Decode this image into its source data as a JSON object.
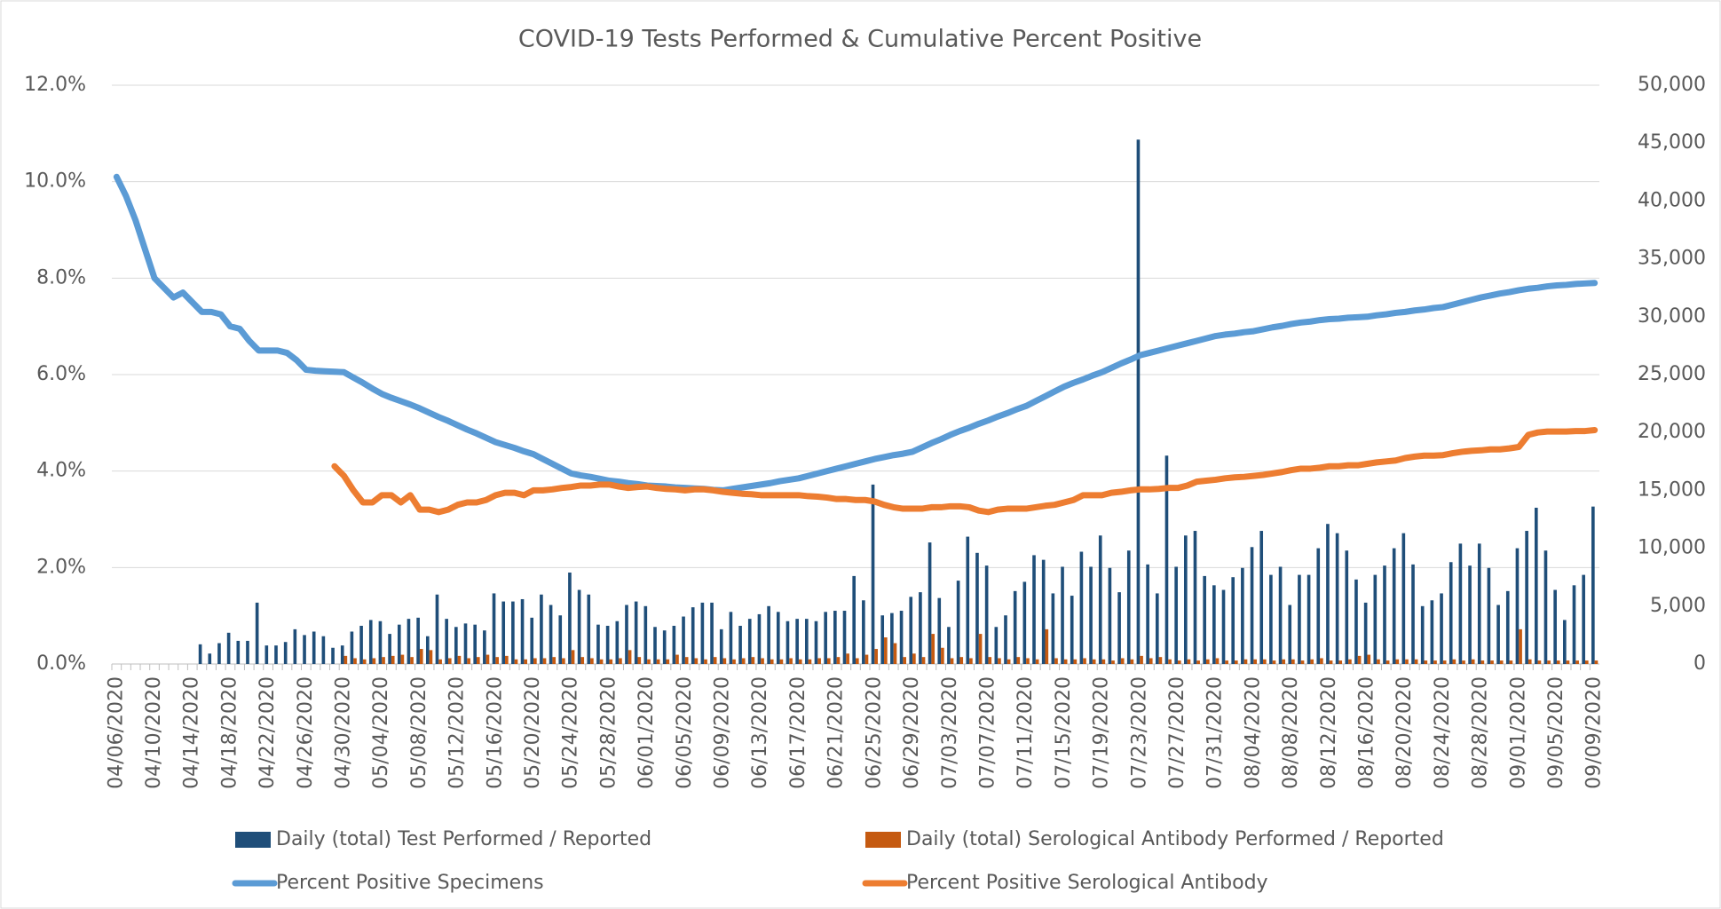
{
  "chart_data": {
    "type": "bar-line",
    "title": "COVID-19 Tests Performed & Cumulative Percent Positive",
    "categories": [
      "04/06/2020",
      null,
      null,
      null,
      "04/10/2020",
      null,
      null,
      null,
      "04/14/2020",
      null,
      null,
      null,
      "04/18/2020",
      null,
      null,
      null,
      "04/22/2020",
      null,
      null,
      null,
      "04/26/2020",
      null,
      null,
      null,
      "04/30/2020",
      null,
      null,
      null,
      "05/04/2020",
      null,
      null,
      null,
      "05/08/2020",
      null,
      null,
      null,
      "05/12/2020",
      null,
      null,
      null,
      "05/16/2020",
      null,
      null,
      null,
      "05/20/2020",
      null,
      null,
      null,
      "05/24/2020",
      null,
      null,
      null,
      "05/28/2020",
      null,
      null,
      null,
      "06/01/2020",
      null,
      null,
      null,
      "06/05/2020",
      null,
      null,
      null,
      "06/09/2020",
      null,
      null,
      null,
      "06/13/2020",
      null,
      null,
      null,
      "06/17/2020",
      null,
      null,
      null,
      "06/21/2020",
      null,
      null,
      null,
      "06/25/2020",
      null,
      null,
      null,
      "06/29/2020",
      null,
      null,
      null,
      "07/03/2020",
      null,
      null,
      null,
      "07/07/2020",
      null,
      null,
      null,
      "07/11/2020",
      null,
      null,
      null,
      "07/15/2020",
      null,
      null,
      null,
      "07/19/2020",
      null,
      null,
      null,
      "07/23/2020",
      null,
      null,
      null,
      "07/27/2020",
      null,
      null,
      null,
      "07/31/2020",
      null,
      null,
      null,
      "08/04/2020",
      null,
      null,
      null,
      "08/08/2020",
      null,
      null,
      null,
      "08/12/2020",
      null,
      null,
      null,
      "08/16/2020",
      null,
      null,
      null,
      "08/20/2020",
      null,
      null,
      null,
      "08/24/2020",
      null,
      null,
      null,
      "08/28/2020",
      null,
      null,
      null,
      "09/01/2020",
      null,
      null,
      null,
      "09/05/2020",
      null,
      null,
      null,
      "09/09/2020"
    ],
    "series": [
      {
        "name": "Daily (total) Test Performed / Reported",
        "type": "bar",
        "axis": "y2",
        "color": "#1f4e79",
        "values": [
          0,
          0,
          0,
          0,
          0,
          0,
          0,
          0,
          0,
          1700,
          900,
          1800,
          2700,
          2000,
          2000,
          5300,
          1600,
          1600,
          1900,
          3000,
          2500,
          2800,
          2400,
          1400,
          1600,
          2800,
          3300,
          3800,
          3700,
          2600,
          3400,
          3900,
          4000,
          2400,
          6000,
          3900,
          3200,
          3500,
          3400,
          2900,
          6100,
          5400,
          5400,
          5600,
          4000,
          6000,
          5100,
          4200,
          7900,
          6400,
          6000,
          3400,
          3300,
          3700,
          5100,
          5400,
          5000,
          3200,
          2900,
          3300,
          4100,
          4900,
          5300,
          5300,
          3000,
          4500,
          3300,
          3900,
          4300,
          5000,
          4500,
          3700,
          3900,
          3900,
          3700,
          4500,
          4600,
          4600,
          7600,
          5500,
          15500,
          4200,
          4400,
          4600,
          5800,
          6200,
          10500,
          5700,
          3200,
          7200,
          11000,
          9600,
          8500,
          3200,
          4200,
          6300,
          7100,
          9400,
          9000,
          6100,
          8400,
          5900,
          9700,
          8400,
          11100,
          8300,
          6200,
          9800,
          45300,
          8600,
          6100,
          18000,
          8400,
          11100,
          11500,
          7600,
          6800,
          6400,
          7500,
          8300,
          10100,
          11500,
          7700,
          8400,
          5100,
          7700,
          7700,
          10000,
          12100,
          11300,
          9800,
          7300,
          5300,
          7700,
          8500,
          10000,
          11300,
          8600,
          5000,
          5500,
          6100,
          8800,
          10400,
          8500,
          10400,
          8300,
          5100,
          6300,
          10000,
          11500,
          13500,
          9800,
          6400,
          3800,
          6800,
          7700,
          13600
        ]
      },
      {
        "name": "Daily (total) Serological Antibody Performed / Reported",
        "type": "bar",
        "axis": "y2",
        "color": "#c55a11",
        "values": [
          0,
          0,
          0,
          0,
          0,
          0,
          0,
          0,
          0,
          0,
          0,
          0,
          0,
          0,
          0,
          0,
          0,
          0,
          0,
          0,
          0,
          0,
          0,
          0,
          700,
          500,
          400,
          500,
          600,
          700,
          800,
          600,
          1300,
          1200,
          400,
          500,
          700,
          500,
          600,
          800,
          600,
          700,
          400,
          400,
          500,
          500,
          600,
          500,
          1200,
          600,
          500,
          400,
          400,
          500,
          1200,
          600,
          400,
          400,
          400,
          800,
          600,
          500,
          400,
          600,
          500,
          400,
          500,
          600,
          500,
          400,
          400,
          500,
          400,
          400,
          500,
          500,
          600,
          900,
          500,
          800,
          1300,
          2300,
          1800,
          600,
          900,
          600,
          2600,
          1400,
          500,
          600,
          500,
          2600,
          600,
          500,
          400,
          600,
          500,
          400,
          3000,
          500,
          400,
          400,
          500,
          400,
          400,
          300,
          500,
          400,
          700,
          500,
          600,
          400,
          300,
          400,
          300,
          400,
          500,
          300,
          300,
          400,
          400,
          400,
          300,
          400,
          400,
          300,
          400,
          500,
          300,
          300,
          400,
          700,
          800,
          400,
          300,
          400,
          400,
          400,
          300,
          300,
          300,
          400,
          300,
          400,
          300,
          300,
          300,
          300,
          3000,
          400,
          300,
          300,
          300,
          300,
          300,
          300,
          300
        ]
      },
      {
        "name": "Percent Positive Specimens",
        "type": "line",
        "color": "#5b9bd5",
        "values": [
          10.1,
          9.7,
          9.2,
          8.6,
          8.0,
          7.8,
          7.6,
          7.7,
          7.5,
          7.3,
          7.3,
          7.25,
          7.0,
          6.95,
          6.7,
          6.5,
          6.5,
          6.5,
          6.45,
          6.3,
          6.1,
          6.08,
          6.07,
          6.06,
          6.05,
          5.94,
          5.83,
          5.71,
          5.6,
          5.52,
          5.45,
          5.38,
          5.3,
          5.21,
          5.12,
          5.04,
          4.95,
          4.86,
          4.78,
          4.69,
          4.6,
          4.54,
          4.48,
          4.41,
          4.35,
          4.25,
          4.15,
          4.05,
          3.95,
          3.91,
          3.88,
          3.84,
          3.8,
          3.78,
          3.75,
          3.73,
          3.7,
          3.69,
          3.68,
          3.66,
          3.65,
          3.64,
          3.63,
          3.61,
          3.6,
          3.63,
          3.66,
          3.69,
          3.72,
          3.75,
          3.79,
          3.82,
          3.85,
          3.9,
          3.95,
          4.0,
          4.05,
          4.1,
          4.15,
          4.2,
          4.25,
          4.29,
          4.33,
          4.36,
          4.4,
          4.49,
          4.58,
          4.66,
          4.75,
          4.83,
          4.9,
          4.98,
          5.05,
          5.13,
          5.2,
          5.28,
          5.35,
          5.45,
          5.55,
          5.65,
          5.75,
          5.83,
          5.9,
          5.98,
          6.05,
          6.14,
          6.23,
          6.31,
          6.4,
          6.45,
          6.5,
          6.55,
          6.6,
          6.65,
          6.7,
          6.75,
          6.8,
          6.83,
          6.85,
          6.88,
          6.9,
          6.94,
          6.98,
          7.01,
          7.05,
          7.08,
          7.1,
          7.13,
          7.15,
          7.16,
          7.18,
          7.19,
          7.2,
          7.23,
          7.25,
          7.28,
          7.3,
          7.33,
          7.35,
          7.38,
          7.4,
          7.45,
          7.5,
          7.55,
          7.6,
          7.64,
          7.68,
          7.71,
          7.75,
          7.78,
          7.8,
          7.83,
          7.85,
          7.86,
          7.88,
          7.89,
          7.9
        ]
      },
      {
        "name": "Percent Positive Serological Antibody",
        "type": "line",
        "color": "#ed7d31",
        "values": [
          null,
          null,
          null,
          null,
          null,
          null,
          null,
          null,
          null,
          null,
          null,
          null,
          null,
          null,
          null,
          null,
          null,
          null,
          null,
          null,
          null,
          null,
          null,
          4.1,
          3.9,
          3.6,
          3.35,
          3.35,
          3.5,
          3.5,
          3.35,
          3.5,
          3.2,
          3.2,
          3.15,
          3.2,
          3.3,
          3.35,
          3.35,
          3.4,
          3.5,
          3.55,
          3.55,
          3.5,
          3.6,
          3.6,
          3.62,
          3.65,
          3.67,
          3.7,
          3.7,
          3.72,
          3.72,
          3.68,
          3.65,
          3.67,
          3.68,
          3.65,
          3.63,
          3.62,
          3.6,
          3.62,
          3.62,
          3.6,
          3.57,
          3.55,
          3.53,
          3.52,
          3.5,
          3.5,
          3.5,
          3.5,
          3.5,
          3.48,
          3.47,
          3.45,
          3.42,
          3.42,
          3.4,
          3.4,
          3.37,
          3.3,
          3.25,
          3.22,
          3.22,
          3.22,
          3.25,
          3.25,
          3.27,
          3.27,
          3.25,
          3.18,
          3.15,
          3.2,
          3.22,
          3.22,
          3.22,
          3.25,
          3.28,
          3.3,
          3.35,
          3.4,
          3.5,
          3.5,
          3.5,
          3.55,
          3.57,
          3.6,
          3.62,
          3.62,
          3.63,
          3.65,
          3.65,
          3.7,
          3.78,
          3.8,
          3.82,
          3.85,
          3.87,
          3.88,
          3.9,
          3.92,
          3.95,
          3.98,
          4.02,
          4.05,
          4.05,
          4.07,
          4.1,
          4.1,
          4.12,
          4.12,
          4.15,
          4.18,
          4.2,
          4.22,
          4.27,
          4.3,
          4.32,
          4.32,
          4.33,
          4.37,
          4.4,
          4.42,
          4.43,
          4.45,
          4.45,
          4.47,
          4.5,
          4.75,
          4.8,
          4.82,
          4.82,
          4.82,
          4.83,
          4.83,
          4.85
        ]
      }
    ],
    "ylim": [
      0,
      12
    ],
    "yticks": [
      {
        "value": 0,
        "label": "0.0%"
      },
      {
        "value": 2,
        "label": "2.0%"
      },
      {
        "value": 4,
        "label": "4.0%"
      },
      {
        "value": 6,
        "label": "6.0%"
      },
      {
        "value": 8,
        "label": "8.0%"
      },
      {
        "value": 10,
        "label": "10.0%"
      },
      {
        "value": 12,
        "label": "12.0%"
      }
    ],
    "y2lim": [
      0,
      50000
    ],
    "y2ticks": [
      0,
      {
        "value": 5000,
        "label": "5,000"
      },
      {
        "value": 10000,
        "label": "10,000"
      },
      {
        "value": 15000,
        "label": "15,000"
      },
      {
        "value": 20000,
        "label": "20,000"
      },
      {
        "value": 25000,
        "label": "25,000"
      },
      {
        "value": 30000,
        "label": "30,000"
      },
      {
        "value": 35000,
        "label": "35,000"
      },
      {
        "value": 40000,
        "label": "40,000"
      },
      {
        "value": 45000,
        "label": "45,000"
      },
      {
        "value": 50000,
        "label": "50,000"
      }
    ],
    "grid": true,
    "legend": "bottom"
  }
}
